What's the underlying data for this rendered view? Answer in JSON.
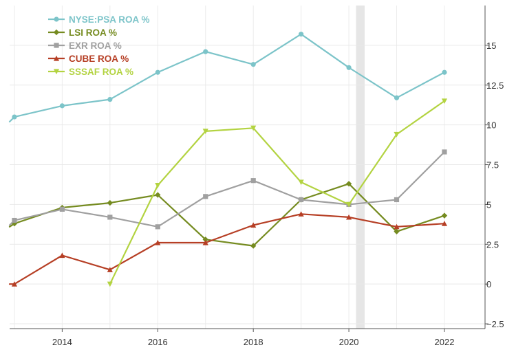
{
  "chart_data": {
    "type": "line",
    "title": "",
    "xlabel": "",
    "ylabel": "",
    "xlim": [
      2012.9,
      2022.85
    ],
    "ylim": [
      -2.8,
      17.5
    ],
    "grid": true,
    "legend_position": "top-left",
    "y_axis_side": "right",
    "x_ticks": [
      2014,
      2016,
      2018,
      2020,
      2022
    ],
    "y_ticks": [
      -2.5,
      0,
      2.5,
      5,
      7.5,
      10,
      12.5,
      15
    ],
    "x_tick_labels": [
      "2014",
      "2016",
      "2018",
      "2020",
      "2022"
    ],
    "y_tick_labels": [
      "−2.5",
      "0",
      "2.5",
      "5",
      "7.5",
      "10",
      "12.5",
      "15"
    ],
    "shaded_band": {
      "x_start": 2020.15,
      "x_end": 2020.33,
      "color": "#e6e6e6"
    },
    "series": [
      {
        "name": "NYSE:PSA ROA %",
        "color": "#7cc4c9",
        "marker": "circle",
        "points": [
          [
            2012.9,
            10.2
          ],
          [
            2013,
            10.5
          ],
          [
            2014,
            11.2
          ],
          [
            2015,
            11.6
          ],
          [
            2016,
            13.3
          ],
          [
            2017,
            14.6
          ],
          [
            2018,
            13.8
          ],
          [
            2019,
            15.7
          ],
          [
            2020,
            13.6
          ],
          [
            2021,
            11.7
          ],
          [
            2022,
            13.3
          ]
        ]
      },
      {
        "name": "LSI ROA %",
        "color": "#758b20",
        "marker": "diamond",
        "points": [
          [
            2012.9,
            3.6
          ],
          [
            2013,
            3.8
          ],
          [
            2014,
            4.8
          ],
          [
            2015,
            5.1
          ],
          [
            2016,
            5.6
          ],
          [
            2017,
            2.8
          ],
          [
            2018,
            2.4
          ],
          [
            2019,
            5.3
          ],
          [
            2020,
            6.3
          ],
          [
            2021,
            3.3
          ],
          [
            2022,
            4.3
          ]
        ]
      },
      {
        "name": "EXR ROA %",
        "color": "#a0a0a0",
        "marker": "square",
        "points": [
          [
            2012.9,
            3.7
          ],
          [
            2013,
            4.0
          ],
          [
            2014,
            4.7
          ],
          [
            2015,
            4.2
          ],
          [
            2016,
            3.6
          ],
          [
            2017,
            5.5
          ],
          [
            2018,
            6.5
          ],
          [
            2019,
            5.3
          ],
          [
            2020,
            5.0
          ],
          [
            2021,
            5.3
          ],
          [
            2022,
            8.3
          ]
        ]
      },
      {
        "name": "CUBE ROA %",
        "color": "#b63f25",
        "marker": "triangle-up",
        "points": [
          [
            2012.9,
            0.0
          ],
          [
            2013,
            0.0
          ],
          [
            2014,
            1.8
          ],
          [
            2015,
            0.9
          ],
          [
            2016,
            2.6
          ],
          [
            2017,
            2.6
          ],
          [
            2018,
            3.7
          ],
          [
            2019,
            4.4
          ],
          [
            2020,
            4.2
          ],
          [
            2021,
            3.6
          ],
          [
            2022,
            3.8
          ]
        ]
      },
      {
        "name": "SSSAF ROA %",
        "color": "#b3d341",
        "marker": "triangle-down",
        "points": [
          [
            2015,
            0.0
          ],
          [
            2016,
            6.2
          ],
          [
            2017,
            9.6
          ],
          [
            2018,
            9.8
          ],
          [
            2019,
            6.4
          ],
          [
            2020,
            5.0
          ],
          [
            2021,
            9.4
          ],
          [
            2022,
            11.5
          ]
        ]
      }
    ]
  }
}
